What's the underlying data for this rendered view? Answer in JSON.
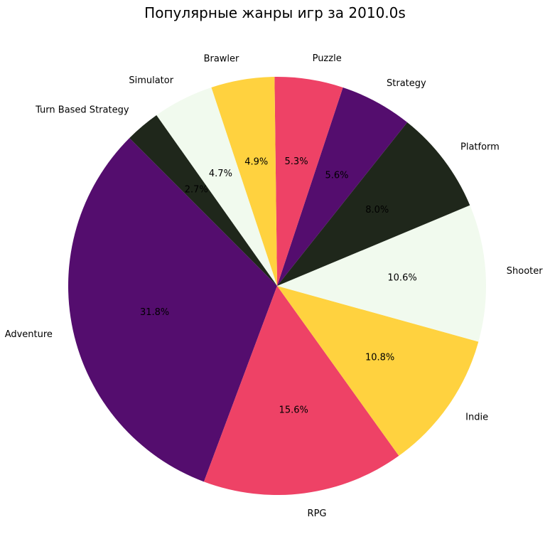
{
  "chart_data": {
    "type": "pie",
    "title": "Популярные жанры игр за 2010.0s",
    "slices": [
      {
        "label": "Adventure",
        "value": 31.8,
        "pct_label": "31.8%",
        "color": "#540d6e"
      },
      {
        "label": "RPG",
        "value": 15.6,
        "pct_label": "15.6%",
        "color": "#ee4266"
      },
      {
        "label": "Indie",
        "value": 10.8,
        "pct_label": "10.8%",
        "color": "#ffd23f"
      },
      {
        "label": "Shooter",
        "value": 10.6,
        "pct_label": "10.6%",
        "color": "#f1faee"
      },
      {
        "label": "Platform",
        "value": 8.0,
        "pct_label": "8.0%",
        "color": "#1f271b"
      },
      {
        "label": "Strategy",
        "value": 5.6,
        "pct_label": "5.6%",
        "color": "#540d6e"
      },
      {
        "label": "Puzzle",
        "value": 5.3,
        "pct_label": "5.3%",
        "color": "#ee4266"
      },
      {
        "label": "Brawler",
        "value": 4.9,
        "pct_label": "4.9%",
        "color": "#ffd23f"
      },
      {
        "label": "Simulator",
        "value": 4.7,
        "pct_label": "4.7%",
        "color": "#f1faee"
      },
      {
        "label": "Turn Based Strategy",
        "value": 2.7,
        "pct_label": "2.7%",
        "color": "#1f271b"
      }
    ],
    "start_angle_deg": 135,
    "direction": "counterclockwise",
    "legend": "none"
  }
}
